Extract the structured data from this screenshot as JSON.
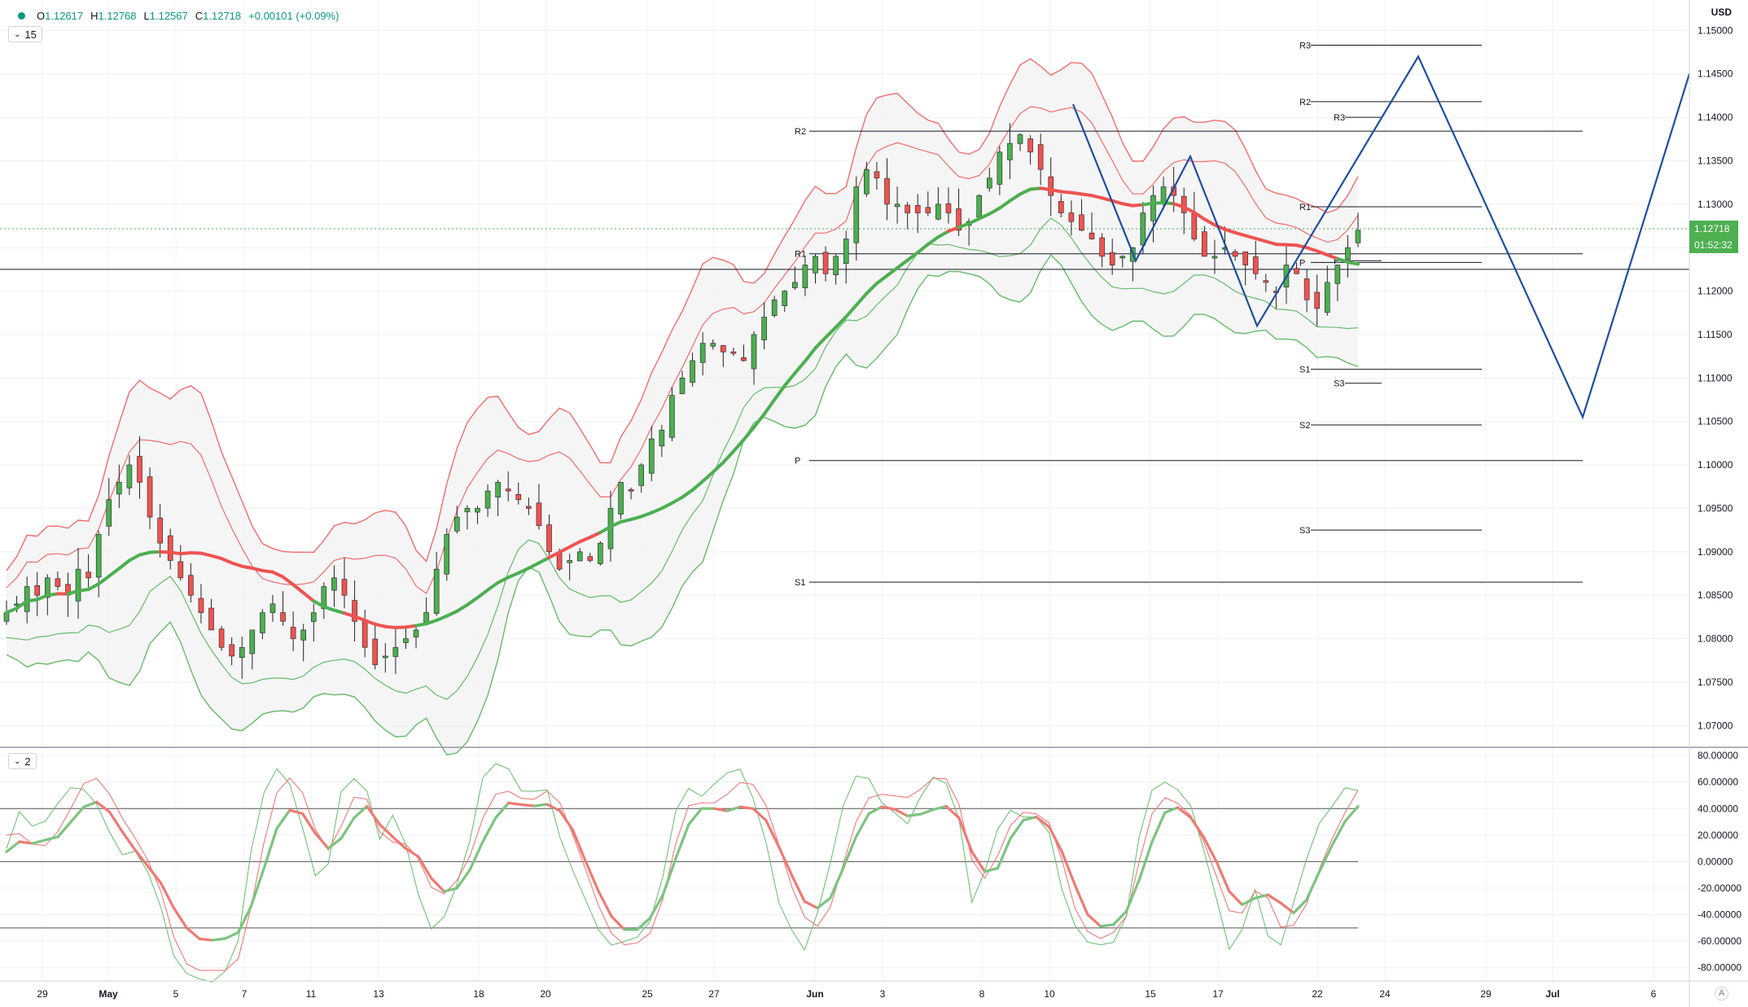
{
  "header": {
    "ohlc": [
      {
        "key": "O",
        "value": "1.12617"
      },
      {
        "key": "H",
        "value": "1.12768"
      },
      {
        "key": "L",
        "value": "1.12567"
      },
      {
        "key": "C",
        "value": "1.12718"
      },
      {
        "key": "",
        "value": "+0.00101 (+0.09%)"
      }
    ],
    "indicator_setting_main": "15",
    "indicator_setting_sub": "2",
    "currency": "USD",
    "auto_button": "A"
  },
  "colors": {
    "up": "#26a69a",
    "candle_up": "#4caf50",
    "candle_down": "#ef5350",
    "band_red": "#f06d6d",
    "band_green": "#66bb6a",
    "drawing": "#1f4e9e",
    "last_price": "#4caf50",
    "text": "#131722",
    "grid": "#eef0f4"
  },
  "price_axis": {
    "ticks": [
      "1.15000",
      "1.14500",
      "1.14000",
      "1.13500",
      "1.13000",
      "1.12500",
      "1.12000",
      "1.11500",
      "1.11000",
      "1.10500",
      "1.10000",
      "1.09500",
      "1.09000",
      "1.08500",
      "1.08000",
      "1.07500",
      "1.07000"
    ],
    "last_price": "1.12718",
    "countdown": "01:52:32"
  },
  "osc_axis": {
    "ticks": [
      "80.00000",
      "60.00000",
      "40.00000",
      "20.00000",
      "0.00000",
      "-20.00000",
      "-40.00000",
      "-60.00000",
      "-80.00000"
    ]
  },
  "time_axis": {
    "ticks": [
      "29",
      "May",
      "5",
      "7",
      "11",
      "13",
      "18",
      "20",
      "25",
      "27",
      "Jun",
      "3",
      "8",
      "10",
      "15",
      "17",
      "22",
      "24",
      "29",
      "Jul",
      "6"
    ]
  },
  "pivot_labels": {
    "monthly": [
      "R2",
      "R1",
      "P",
      "S1"
    ],
    "weekly": [
      "R3",
      "R2",
      "R1",
      "P",
      "S1",
      "S2",
      "S3"
    ],
    "daily": [
      "R3",
      "P",
      "S3"
    ]
  },
  "chart_data": {
    "type": "candlestick",
    "symbol_precision": 5,
    "ylim": [
      1.0675,
      1.1535
    ],
    "osc_ylim": [
      -90,
      85
    ],
    "last_close": 1.12718,
    "pivots_monthly": {
      "R2": 1.1384,
      "R1": 1.1243,
      "P": 1.1005,
      "S1": 1.0865
    },
    "pivots_weekly": {
      "R3": 1.1483,
      "R2": 1.1418,
      "R1": 1.1297,
      "P": 1.1233,
      "S1": 1.111,
      "S2": 1.1046,
      "S3": 1.0925
    },
    "pivots_daily": {
      "R3": 1.14,
      "P": 1.1235,
      "S3": 1.1094
    },
    "horizontal_line": 1.1225,
    "osc_levels": [
      40,
      0,
      -50
    ],
    "price_path": [
      1.083,
      1.084,
      1.086,
      1.085,
      1.087,
      1.086,
      1.085,
      1.088,
      1.087,
      1.092,
      1.096,
      1.098,
      1.1,
      1.098,
      1.094,
      1.091,
      1.089,
      1.087,
      1.085,
      1.083,
      1.081,
      1.079,
      1.078,
      1.079,
      1.081,
      1.083,
      1.084,
      1.082,
      1.08,
      1.081,
      1.083,
      1.086,
      1.087,
      1.085,
      1.082,
      1.079,
      1.077,
      1.078,
      1.079,
      1.08,
      1.081,
      1.083,
      1.088,
      1.092,
      1.094,
      1.095,
      1.095,
      1.097,
      1.098,
      1.097,
      1.096,
      1.095,
      1.093,
      1.09,
      1.088,
      1.089,
      1.09,
      1.089,
      1.091,
      1.095,
      1.098,
      1.097,
      1.1,
      1.103,
      1.104,
      1.108,
      1.11,
      1.112,
      1.114,
      1.114,
      1.113,
      1.113,
      1.112,
      1.115,
      1.117,
      1.119,
      1.12,
      1.121,
      1.123,
      1.124,
      1.122,
      1.124,
      1.126,
      1.132,
      1.134,
      1.133,
      1.13,
      1.13,
      1.129,
      1.129,
      1.129,
      1.13,
      1.129,
      1.127,
      1.128,
      1.131,
      1.133,
      1.136,
      1.137,
      1.138,
      1.136,
      1.134,
      1.131,
      1.129,
      1.128,
      1.127,
      1.126,
      1.124,
      1.123,
      1.124,
      1.125,
      1.129,
      1.131,
      1.132,
      1.131,
      1.129,
      1.126,
      1.124,
      1.124,
      1.125,
      1.124,
      1.123,
      1.122,
      1.121,
      1.12,
      1.123,
      1.122,
      1.119,
      1.118,
      1.121,
      1.123,
      1.125,
      1.127
    ],
    "osc_fast": [
      10,
      30,
      15,
      20,
      40,
      60,
      65,
      55,
      30,
      5,
      0,
      -20,
      -45,
      -75,
      -80,
      -78,
      -79,
      -75,
      -60,
      0,
      40,
      60,
      55,
      30,
      0,
      10,
      60,
      62,
      45,
      5,
      25,
      10,
      -20,
      -40,
      -30,
      -10,
      15,
      55,
      62,
      60,
      50,
      58,
      65,
      30,
      0,
      -30,
      -60,
      -75,
      -70,
      -60,
      -40,
      0,
      50,
      62,
      48,
      50,
      55,
      60,
      45,
      20,
      -20,
      -40,
      -60,
      -40,
      -10,
      30,
      55,
      60,
      50,
      48,
      40,
      55,
      62,
      50,
      20,
      -40,
      -10,
      30,
      50,
      45,
      40,
      20,
      -30,
      -60,
      -70,
      -65,
      -55,
      -30,
      30,
      60,
      58,
      45,
      30,
      0,
      -30,
      -60,
      -40,
      -10,
      -50,
      -65,
      -40,
      -10,
      20,
      40,
      62,
      65
    ],
    "osc_signal": [
      20,
      25,
      20,
      20,
      30,
      45,
      60,
      60,
      45,
      25,
      10,
      -5,
      -25,
      -55,
      -72,
      -79,
      -79,
      -77,
      -70,
      -35,
      10,
      45,
      55,
      45,
      20,
      8,
      30,
      55,
      55,
      30,
      20,
      15,
      0,
      -25,
      -32,
      -22,
      -2,
      30,
      52,
      58,
      55,
      55,
      60,
      48,
      20,
      -10,
      -40,
      -62,
      -70,
      -66,
      -55,
      -25,
      20,
      50,
      52,
      50,
      53,
      58,
      53,
      35,
      5,
      -25,
      -45,
      -48,
      -30,
      5,
      38,
      55,
      55,
      50,
      45,
      48,
      55,
      55,
      38,
      0,
      -10,
      10,
      35,
      45,
      42,
      32,
      0,
      -40,
      -60,
      -66,
      -60,
      -45,
      0,
      40,
      55,
      52,
      42,
      20,
      -10,
      -40,
      -45,
      -30,
      -35,
      -55,
      -50,
      -30,
      0,
      25,
      45,
      60
    ]
  }
}
